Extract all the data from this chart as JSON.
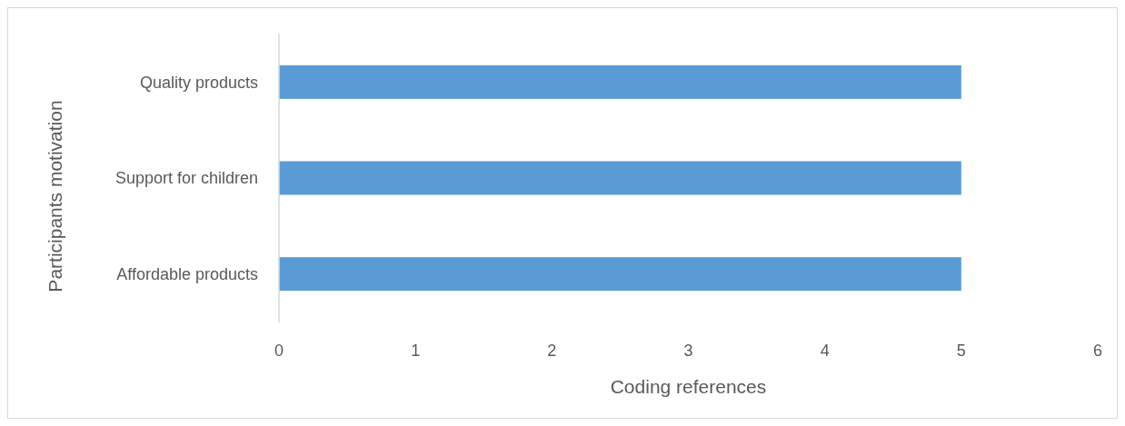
{
  "chart_data": {
    "type": "bar",
    "orientation": "horizontal",
    "xlabel": "Coding references",
    "ylabel": "Participants motivation",
    "categories": [
      "Quality products",
      "Support for children",
      "Affordable products"
    ],
    "values": [
      5,
      5,
      5
    ],
    "color": "#5b9bd5",
    "xlim": [
      0,
      6
    ],
    "xticks": [
      0,
      1,
      2,
      3,
      4,
      5,
      6
    ],
    "grid": false
  }
}
